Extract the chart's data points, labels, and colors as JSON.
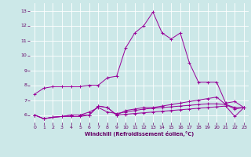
{
  "xlabel": "Windchill (Refroidissement éolien,°C)",
  "background_color": "#cce8e8",
  "grid_color": "#ffffff",
  "line_color": "#990099",
  "tick_color": "#660066",
  "xlim": [
    -0.5,
    23.5
  ],
  "ylim": [
    5.5,
    13.5
  ],
  "yticks": [
    6,
    7,
    8,
    9,
    10,
    11,
    12,
    13
  ],
  "xticks": [
    0,
    1,
    2,
    3,
    4,
    5,
    6,
    7,
    8,
    9,
    10,
    11,
    12,
    13,
    14,
    15,
    16,
    17,
    18,
    19,
    20,
    21,
    22,
    23
  ],
  "series": [
    {
      "x": [
        0,
        1,
        2,
        3,
        4,
        5,
        6,
        7,
        8,
        9,
        10,
        11,
        12,
        13,
        14,
        15,
        16,
        17,
        18,
        19,
        20,
        21,
        22,
        23
      ],
      "y": [
        7.4,
        7.8,
        7.9,
        7.9,
        7.9,
        7.9,
        8.0,
        8.0,
        8.5,
        8.6,
        10.5,
        11.5,
        12.0,
        12.9,
        11.5,
        11.1,
        11.5,
        9.5,
        8.2,
        8.2,
        8.2,
        6.8,
        6.9,
        6.5
      ]
    },
    {
      "x": [
        0,
        1,
        2,
        3,
        4,
        5,
        6,
        7,
        8,
        9,
        10,
        11,
        12,
        13,
        14,
        15,
        16,
        17,
        18,
        19,
        20,
        21,
        22,
        23
      ],
      "y": [
        6.0,
        5.75,
        5.85,
        5.9,
        5.9,
        5.9,
        6.0,
        6.6,
        6.5,
        6.0,
        6.05,
        6.1,
        6.15,
        6.2,
        6.25,
        6.3,
        6.35,
        6.4,
        6.45,
        6.5,
        6.55,
        6.6,
        5.9,
        6.5
      ]
    },
    {
      "x": [
        0,
        1,
        2,
        3,
        4,
        5,
        6,
        7,
        8,
        9,
        10,
        11,
        12,
        13,
        14,
        15,
        16,
        17,
        18,
        19,
        20,
        21,
        22,
        23
      ],
      "y": [
        6.0,
        5.75,
        5.85,
        5.9,
        6.0,
        6.0,
        6.2,
        6.5,
        6.2,
        6.1,
        6.2,
        6.3,
        6.4,
        6.45,
        6.5,
        6.55,
        6.6,
        6.65,
        6.7,
        6.75,
        6.75,
        6.7,
        6.4,
        6.5
      ]
    },
    {
      "x": [
        0,
        1,
        2,
        3,
        4,
        5,
        6,
        7,
        8,
        9,
        10,
        11,
        12,
        13,
        14,
        15,
        16,
        17,
        18,
        19,
        20,
        21,
        22,
        23
      ],
      "y": [
        6.0,
        5.75,
        5.85,
        5.9,
        6.0,
        6.0,
        6.0,
        6.6,
        6.5,
        6.0,
        6.3,
        6.4,
        6.5,
        6.5,
        6.6,
        6.7,
        6.8,
        6.9,
        7.0,
        7.1,
        7.2,
        6.7,
        6.5,
        6.5
      ]
    }
  ]
}
